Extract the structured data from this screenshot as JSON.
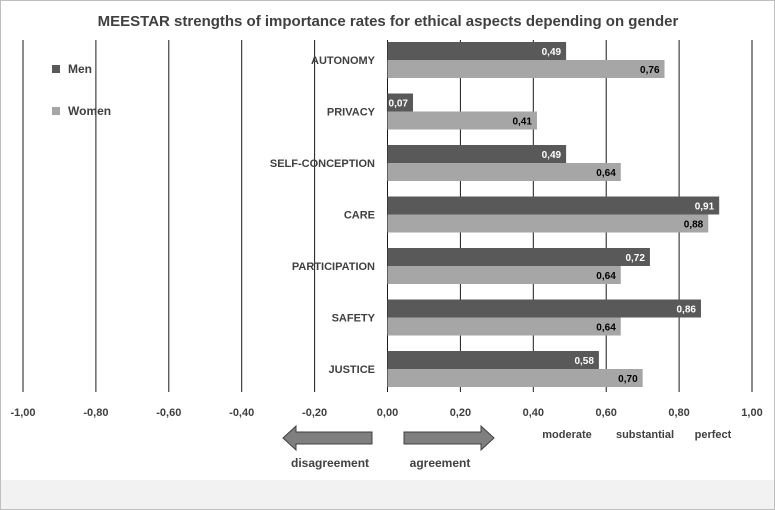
{
  "chart_data": {
    "type": "bar",
    "orientation": "horizontal",
    "title": "MEESTAR strengths of importance rates for ethical aspects depending on gender",
    "categories": [
      "AUTONOMY",
      "PRIVACY",
      "SELF-CONCEPTION",
      "CARE",
      "PARTICIPATION",
      "SAFETY",
      "JUSTICE"
    ],
    "series": [
      {
        "name": "Men",
        "values": [
          0.49,
          0.07,
          0.49,
          0.91,
          0.72,
          0.86,
          0.58
        ],
        "labels": [
          "0,49",
          "0,07",
          "0,49",
          "0,91",
          "0,72",
          "0,86",
          "0,58"
        ],
        "color": "#595959"
      },
      {
        "name": "Women",
        "values": [
          0.76,
          0.41,
          0.64,
          0.88,
          0.64,
          0.64,
          0.7
        ],
        "labels": [
          "0,76",
          "0,41",
          "0,64",
          "0,88",
          "0,64",
          "0,64",
          "0,70"
        ],
        "color": "#a6a6a6"
      }
    ],
    "xlim": [
      -1,
      1
    ],
    "xticks": [
      -1,
      -0.8,
      -0.6,
      -0.4,
      -0.2,
      0,
      0.2,
      0.4,
      0.6,
      0.8,
      1
    ],
    "xtick_labels": [
      "-1,00",
      "-0,80",
      "-0,60",
      "-0,40",
      "-0,20",
      "0,00",
      "0,20",
      "0,40",
      "0,60",
      "0,80",
      "1,00"
    ],
    "grid": true,
    "legend_position": "top-left",
    "agreement_levels": [
      "moderate",
      "substantial",
      "perfect"
    ],
    "arrows": {
      "left": "disagreement",
      "right": "agreement"
    }
  }
}
